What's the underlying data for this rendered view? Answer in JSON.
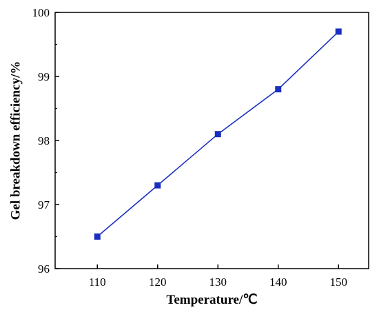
{
  "chart_data": {
    "type": "line",
    "title": "",
    "xlabel": "Temperature/℃",
    "ylabel": "Gel breakdown efficiency/%",
    "xlim": [
      103,
      155
    ],
    "ylim": [
      96,
      100
    ],
    "xticks": [
      110,
      120,
      130,
      140,
      150
    ],
    "yticks": [
      96,
      97,
      98,
      99,
      100
    ],
    "grid": false,
    "legend": "none",
    "series": [
      {
        "color": "#1a2fbf",
        "marker": "square",
        "x": [
          110,
          120,
          130,
          140,
          150
        ],
        "y": [
          96.5,
          97.3,
          98.1,
          98.8,
          99.7
        ]
      }
    ]
  }
}
